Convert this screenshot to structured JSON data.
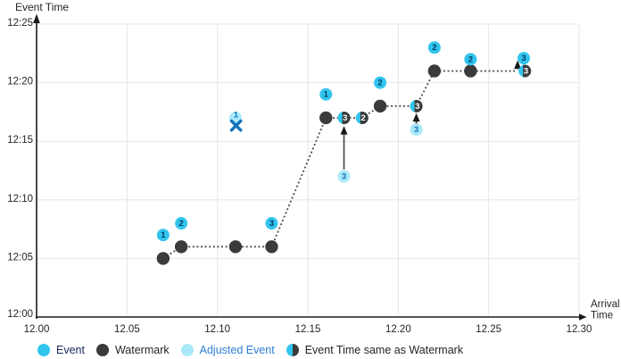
{
  "y_axis_title": "Event Time",
  "x_axis_title_lines": [
    "Arrival",
    "Time"
  ],
  "legend": [
    {
      "label": "Event",
      "marker": "event",
      "text_color": "#17295F"
    },
    {
      "label": "Watermark",
      "marker": "watermark",
      "text_color": "#252423"
    },
    {
      "label": "Adjusted Event",
      "marker": "adjusted",
      "text_color": "#2E7FD6"
    },
    {
      "label": "Event Time same as Watermark",
      "marker": "same-as-watermark",
      "text_color": "#252423"
    }
  ],
  "colors": {
    "event": "#31C5EE",
    "watermark": "#3B3B3B",
    "adjusted": "#AAE9F9",
    "digit_on_event": "#003A62",
    "digit_on_adjusted": "#1470B8",
    "digit_on_watermark": "#FFFFFF",
    "x_mark": "#1272BD",
    "grid": "#E6E6E6",
    "axis": "#1A1A1A",
    "dotted_line": "#4D4D4D",
    "arrow_line": "#4A4A4A",
    "arrow_head": "#1A1A1A",
    "text": "#252423"
  },
  "chart_data": {
    "type": "scatter",
    "title": "",
    "x_label": "Arrival Time",
    "y_label": "Event Time",
    "x_range": [
      12.0,
      12.3
    ],
    "y_range_minutes": [
      0,
      25
    ],
    "x_ticks": [
      12.0,
      12.05,
      12.1,
      12.15,
      12.2,
      12.25,
      12.3
    ],
    "x_tick_labels": [
      "12.00",
      "12.05",
      "12.10",
      "12.15",
      "12.20",
      "12.25",
      "12.30"
    ],
    "y_ticks_minutes": [
      0,
      5,
      10,
      15,
      20,
      25
    ],
    "y_tick_labels": [
      "12:00",
      "12:05",
      "12:10",
      "12:15",
      "12:20",
      "12:25"
    ],
    "grid": true,
    "legend_position": "bottom",
    "events": [
      {
        "label": "1",
        "arrival": 12.07,
        "event_minutes": 7,
        "event_time": "12:07"
      },
      {
        "label": "2",
        "arrival": 12.08,
        "event_minutes": 8,
        "event_time": "12:08"
      },
      {
        "label": "3",
        "arrival": 12.13,
        "event_minutes": 8,
        "event_time": "12:08"
      },
      {
        "label": "1",
        "arrival": 12.16,
        "event_minutes": 19,
        "event_time": "12:19"
      },
      {
        "label": "2",
        "arrival": 12.19,
        "event_minutes": 20,
        "event_time": "12:20"
      },
      {
        "label": "2",
        "arrival": 12.22,
        "event_minutes": 23,
        "event_time": "12:23"
      },
      {
        "label": "2",
        "arrival": 12.24,
        "event_minutes": 22,
        "event_time": "12:22"
      },
      {
        "label": "3",
        "arrival": 12.27,
        "event_minutes": 22,
        "event_time": "12:22"
      }
    ],
    "watermarks": [
      {
        "arrival": 12.07,
        "event_minutes": 5,
        "event_time": "12:05"
      },
      {
        "arrival": 12.08,
        "event_minutes": 6,
        "event_time": "12:06"
      },
      {
        "arrival": 12.11,
        "event_minutes": 6,
        "event_time": "12:06"
      },
      {
        "arrival": 12.13,
        "event_minutes": 6,
        "event_time": "12:06"
      },
      {
        "arrival": 12.16,
        "event_minutes": 17,
        "event_time": "12:17"
      },
      {
        "arrival": 12.19,
        "event_minutes": 18,
        "event_time": "12:18"
      },
      {
        "arrival": 12.22,
        "event_minutes": 21,
        "event_time": "12:21"
      },
      {
        "arrival": 12.24,
        "event_minutes": 21,
        "event_time": "12:21"
      }
    ],
    "same_as_watermark": [
      {
        "label": "3",
        "arrival": 12.17,
        "event_minutes": 17,
        "event_time": "12:17"
      },
      {
        "label": "2",
        "arrival": 12.18,
        "event_minutes": 17,
        "event_time": "12:17"
      },
      {
        "label": "3",
        "arrival": 12.21,
        "event_minutes": 18,
        "event_time": "12:18"
      },
      {
        "label": "3",
        "arrival": 12.27,
        "event_minutes": 21,
        "event_time": "12:21"
      }
    ],
    "adjusted_events": [
      {
        "label": "3",
        "arrival": 12.17,
        "event_minutes": 12,
        "event_time": "12:12",
        "adjusted_to": "12:17"
      },
      {
        "label": "3",
        "arrival": 12.21,
        "event_minutes": 16,
        "event_time": "12:16",
        "adjusted_to": "12:18"
      }
    ],
    "dropped_event": {
      "label": "1",
      "arrival": 12.11,
      "event_minutes": 17,
      "event_time": "12:17"
    },
    "watermark_path": [
      [
        12.07,
        5
      ],
      [
        12.08,
        6
      ],
      [
        12.13,
        6
      ],
      [
        12.16,
        17
      ],
      [
        12.18,
        17
      ],
      [
        12.19,
        18
      ],
      [
        12.21,
        18
      ],
      [
        12.22,
        21
      ],
      [
        12.265,
        21
      ]
    ],
    "arrows": [
      {
        "arrival": 12.17,
        "from_minutes": 12.6,
        "to_minutes": 16.3
      },
      {
        "arrival": 12.21,
        "from_minutes": 16.5,
        "to_minutes": 17.4
      },
      {
        "arrival": 12.266,
        "from_minutes": 21.15,
        "to_minutes": 21.9
      }
    ]
  }
}
